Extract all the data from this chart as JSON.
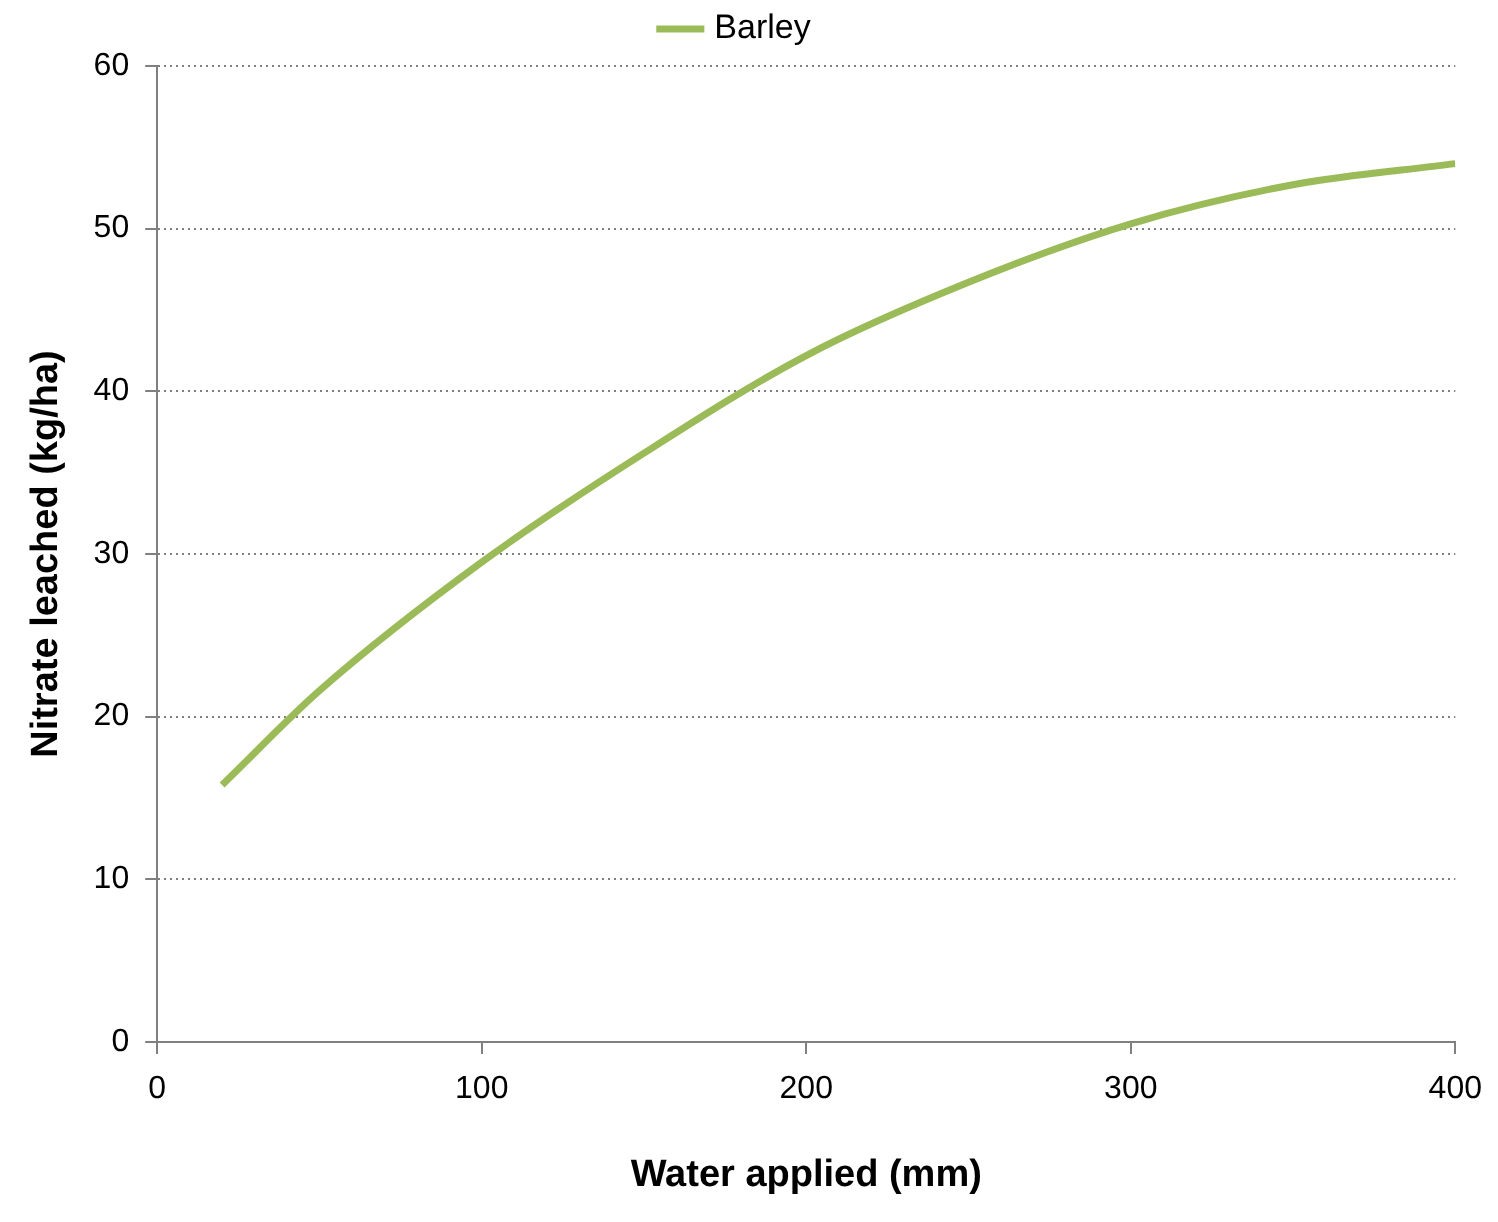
{
  "chart_data": {
    "type": "line",
    "xlabel": "Water applied (mm)",
    "ylabel": "Nitrate leached (kg/ha)",
    "x": [
      20,
      50,
      100,
      150,
      200,
      250,
      300,
      350,
      400
    ],
    "series": [
      {
        "name": "Barley",
        "color": "#9bbb59",
        "values": [
          15.8,
          21.6,
          29.5,
          36.2,
          42.2,
          46.7,
          50.3,
          52.7,
          54.0
        ]
      }
    ],
    "xlim": [
      0,
      400
    ],
    "xticks": [
      0,
      100,
      200,
      300,
      400
    ],
    "ylim": [
      0,
      60
    ],
    "yticks": [
      0,
      10,
      20,
      30,
      40,
      50,
      60
    ],
    "grid": "y",
    "legend": "top",
    "marker": "none",
    "line_style": "solid"
  }
}
